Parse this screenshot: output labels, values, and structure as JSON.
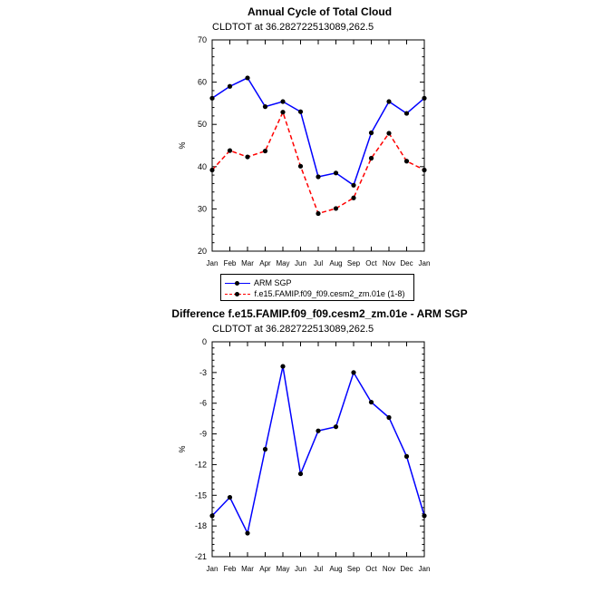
{
  "chart1": {
    "title": "Annual Cycle of Total Cloud",
    "subtitle": "CLDTOT at 36.282722513089,262.5"
  },
  "chart2": {
    "title": "Difference f.e15.FAMIP.f09_f09.cesm2_zm.01e - ARM SGP",
    "subtitle": "CLDTOT at 36.282722513089,262.5"
  },
  "legend": {
    "items": [
      {
        "label": "ARM SGP",
        "color": "#0000ff",
        "dash": "solid"
      },
      {
        "label": "f.e15.FAMIP.f09_f09.cesm2_zm.01e (1-8)",
        "color": "#ff0000",
        "dash": "dashed"
      }
    ]
  },
  "chart_data": [
    {
      "type": "line",
      "title": "Annual Cycle of Total Cloud",
      "subtitle": "CLDTOT at 36.282722513089,262.5",
      "xlabel": "",
      "ylabel": "%",
      "categories": [
        "Jan",
        "Feb",
        "Mar",
        "Apr",
        "May",
        "Jun",
        "Jul",
        "Aug",
        "Sep",
        "Oct",
        "Nov",
        "Dec",
        "Jan"
      ],
      "ylim": [
        20,
        70
      ],
      "yticks": [
        20,
        30,
        40,
        50,
        60,
        70
      ],
      "grid": false,
      "legend": "below",
      "series": [
        {
          "name": "ARM SGP",
          "color": "#0000ff",
          "values": [
            56.2,
            59.0,
            61.0,
            54.2,
            55.4,
            53.0,
            37.6,
            38.5,
            35.6,
            48.0,
            55.4,
            52.6,
            56.2
          ]
        },
        {
          "name": "f.e15.FAMIP.f09_f09.cesm2_zm.01e (1-8)",
          "color": "#ff0000",
          "values": [
            39.2,
            43.8,
            42.3,
            43.7,
            52.9,
            40.1,
            28.9,
            30.1,
            32.6,
            42.0,
            47.9,
            41.3,
            39.2
          ]
        }
      ]
    },
    {
      "type": "line",
      "title": "Difference f.e15.FAMIP.f09_f09.cesm2_zm.01e - ARM SGP",
      "subtitle": "CLDTOT at 36.282722513089,262.5",
      "xlabel": "",
      "ylabel": "%",
      "categories": [
        "Jan",
        "Feb",
        "Mar",
        "Apr",
        "May",
        "Jun",
        "Jul",
        "Aug",
        "Sep",
        "Oct",
        "Nov",
        "Dec",
        "Jan"
      ],
      "ylim": [
        -21,
        0
      ],
      "yticks": [
        -21,
        -18,
        -15,
        -12,
        -9,
        -6,
        -3,
        0
      ],
      "grid": false,
      "series": [
        {
          "color": "#0000ff",
          "values": [
            -17.0,
            -15.2,
            -18.7,
            -10.5,
            -2.4,
            -12.9,
            -8.7,
            -8.3,
            -3.0,
            -5.9,
            -7.4,
            -11.2,
            -17.0
          ]
        }
      ]
    }
  ]
}
